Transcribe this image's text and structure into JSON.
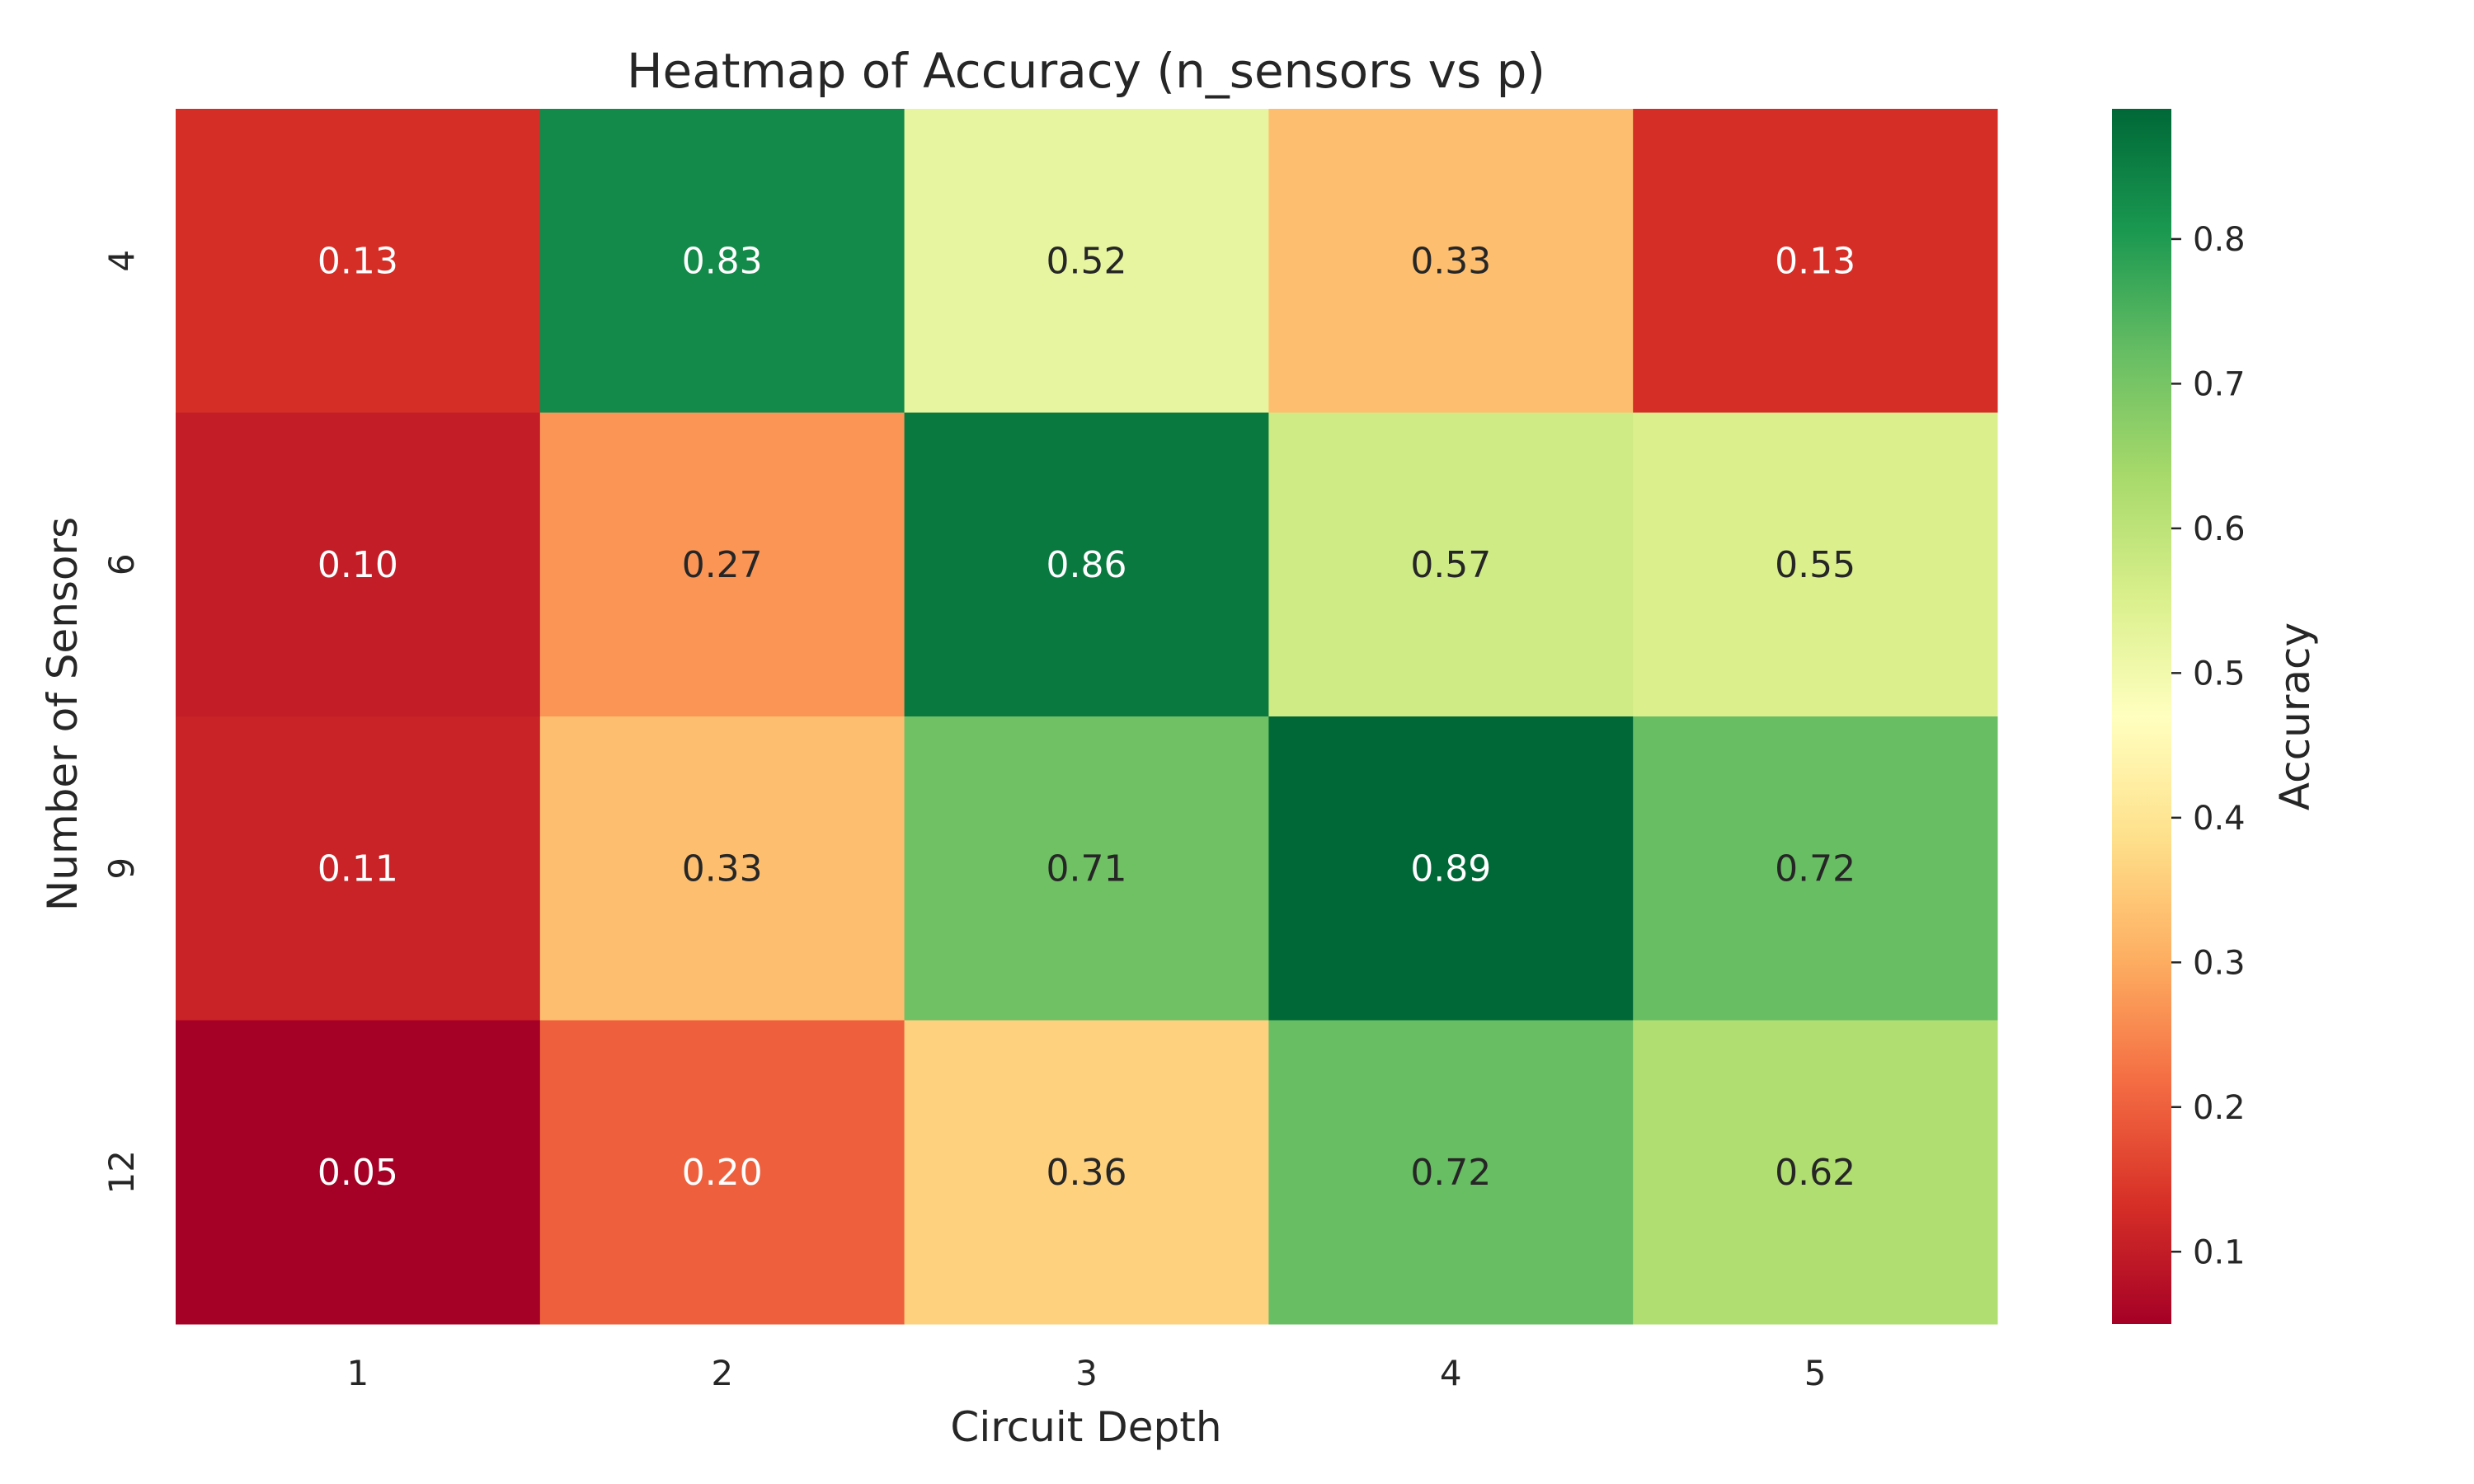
{
  "chart_data": {
    "type": "heatmap",
    "title": "Heatmap of Accuracy (n_sensors vs p)",
    "xlabel": "Circuit Depth",
    "ylabel": "Number of Sensors",
    "x_categories": [
      "1",
      "2",
      "3",
      "4",
      "5"
    ],
    "y_categories": [
      "4",
      "6",
      "9",
      "12"
    ],
    "values": [
      [
        0.13,
        0.83,
        0.52,
        0.33,
        0.13
      ],
      [
        0.1,
        0.27,
        0.86,
        0.57,
        0.55
      ],
      [
        0.11,
        0.33,
        0.71,
        0.89,
        0.72
      ],
      [
        0.05,
        0.2,
        0.36,
        0.72,
        0.62
      ]
    ],
    "value_format": "0.00",
    "colormap": "RdYlGn",
    "colorbar": {
      "label": "Accuracy",
      "range": [
        0.05,
        0.89
      ],
      "ticks": [
        0.1,
        0.2,
        0.3,
        0.4,
        0.5,
        0.6,
        0.7,
        0.8
      ],
      "tick_labels": [
        "0.1",
        "0.2",
        "0.3",
        "0.4",
        "0.5",
        "0.6",
        "0.7",
        "0.8"
      ]
    },
    "grid": false
  }
}
